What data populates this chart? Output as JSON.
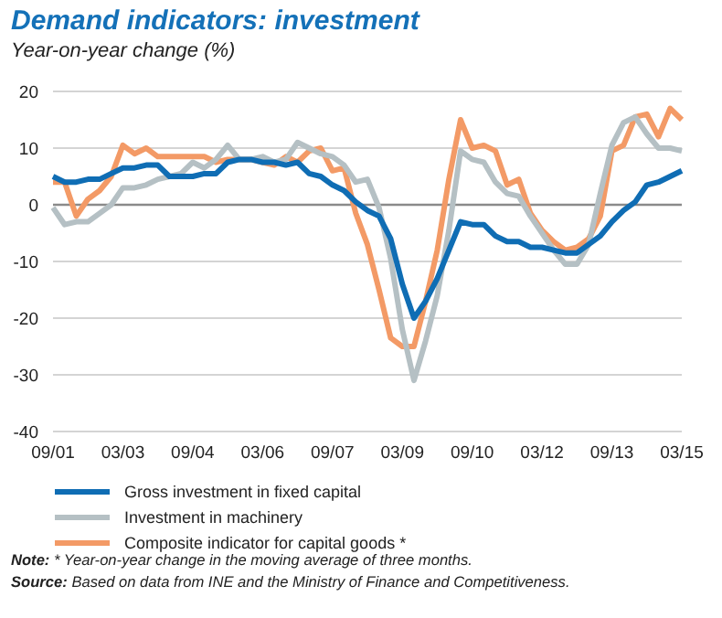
{
  "chart_data": {
    "type": "line",
    "title": "Demand indicators: investment",
    "subtitle": "Year-on-year change (%)",
    "categories": [
      "09/01",
      null,
      null,
      null,
      null,
      null,
      "03/03",
      null,
      null,
      null,
      null,
      null,
      "09/04",
      null,
      null,
      null,
      null,
      null,
      "03/06",
      null,
      null,
      null,
      null,
      null,
      "09/07",
      null,
      null,
      null,
      null,
      null,
      "03/09",
      null,
      null,
      null,
      null,
      null,
      "09/10",
      null,
      null,
      null,
      null,
      null,
      "03/12",
      null,
      null,
      null,
      null,
      null,
      "09/13",
      null,
      null,
      null,
      null,
      null,
      "03/15"
    ],
    "series": [
      {
        "name": "Gross investment in fixed capital",
        "color": "#0f6db4",
        "values": [
          5,
          4,
          4,
          4.5,
          4.5,
          5.5,
          6.5,
          6.5,
          7,
          7,
          5,
          5,
          5,
          5.5,
          5.5,
          7.5,
          8,
          8,
          7.5,
          7.5,
          7,
          7.5,
          5.5,
          5,
          3.5,
          2.5,
          0.5,
          -1,
          -2,
          -6,
          -14,
          -20,
          -17,
          -13,
          -8,
          -3,
          -3.5,
          -3.5,
          -5.5,
          -6.5,
          -6.5,
          -7.5,
          -7.5,
          -8,
          -8.5,
          -8.5,
          -7,
          -5.5,
          -3,
          -1,
          0.5,
          3.5,
          4,
          5,
          6
        ]
      },
      {
        "name": "Investment in machinery",
        "color": "#b5c0c4",
        "values": [
          -0.5,
          -3.5,
          -3,
          -3,
          -1.5,
          0,
          3,
          3,
          3.5,
          4.5,
          5,
          5.5,
          7.5,
          6.5,
          8,
          10.5,
          8,
          8,
          8.5,
          7.5,
          8,
          11,
          10,
          9,
          8.5,
          7,
          4,
          4.5,
          -0.5,
          -9.5,
          -22,
          -31,
          -24,
          -16,
          -4.5,
          9.5,
          8,
          7.5,
          4,
          2,
          1.5,
          -2,
          -5,
          -8,
          -10.5,
          -10.5,
          -7,
          2,
          10.5,
          14.5,
          15.5,
          12.5,
          10,
          10,
          9.5
        ]
      },
      {
        "name": "Composite indicator for capital goods *",
        "color": "#f39a66",
        "values": [
          4,
          4,
          -2,
          1,
          2.5,
          5,
          10.5,
          9,
          10,
          8.5,
          8.5,
          8.5,
          8.5,
          8.5,
          7.5,
          8,
          8,
          8,
          7.5,
          7,
          8.5,
          7.5,
          9.5,
          10,
          6,
          6.5,
          -1.5,
          -7,
          -15,
          -23.5,
          -25,
          -25,
          -17,
          -8,
          4.5,
          15,
          10,
          10.5,
          9.5,
          3.5,
          4.5,
          -1.5,
          -4.5,
          -6.5,
          -8,
          -7.5,
          -6,
          -2,
          9.5,
          10.5,
          15.5,
          16,
          12,
          17,
          15
        ]
      }
    ],
    "ylim": [
      -40,
      20
    ],
    "yticks": [
      -40,
      -30,
      -20,
      -10,
      0,
      10,
      20
    ],
    "grid": "y",
    "legend": "bottom",
    "ref_lines": [
      {
        "axis": "y",
        "value": 0,
        "color": "#8a8a8a"
      }
    ],
    "annotations": [
      "Note: * Year-on-year change in the moving average of three months.",
      "Source: Based on data from INE and the Ministry of Finance and Competitiveness."
    ]
  }
}
